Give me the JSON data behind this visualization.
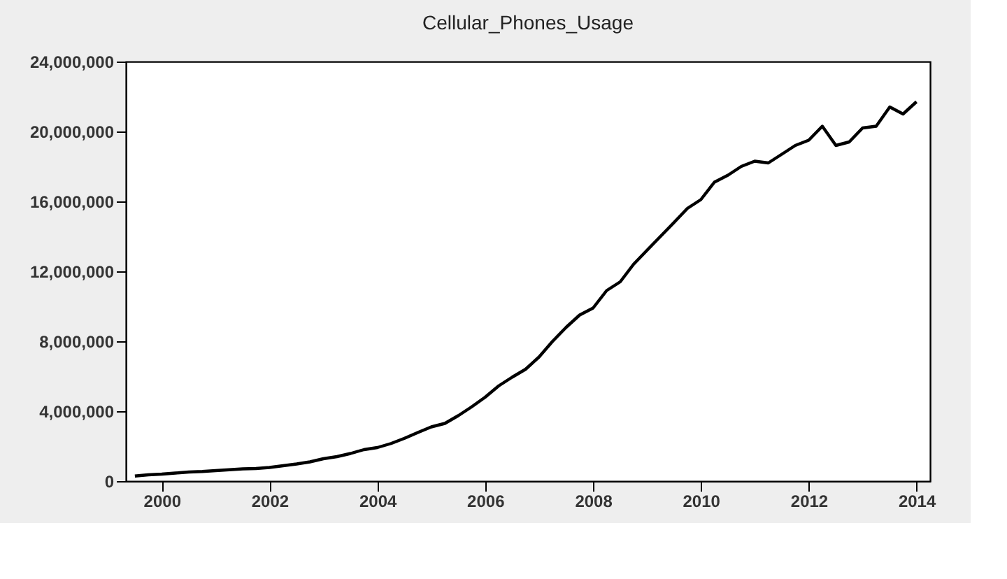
{
  "chart_data": {
    "type": "line",
    "title": "Cellular_Phones_Usage",
    "x": [
      "2000-01",
      "2000-04",
      "2000-07",
      "2000-10",
      "2001-01",
      "2001-04",
      "2001-07",
      "2001-10",
      "2002-01",
      "2002-04",
      "2002-07",
      "2002-10",
      "2003-01",
      "2003-04",
      "2003-07",
      "2003-10",
      "2004-01",
      "2004-04",
      "2004-07",
      "2004-10",
      "2005-01",
      "2005-04",
      "2005-07",
      "2005-10",
      "2006-01",
      "2006-04",
      "2006-07",
      "2006-10",
      "2007-01",
      "2007-04",
      "2007-07",
      "2007-10",
      "2008-01",
      "2008-04",
      "2008-07",
      "2008-10",
      "2009-01",
      "2009-04",
      "2009-07",
      "2009-10",
      "2010-01",
      "2010-04",
      "2010-07",
      "2010-10",
      "2011-01",
      "2011-04",
      "2011-07",
      "2011-10",
      "2012-01",
      "2012-04",
      "2012-07",
      "2012-10",
      "2013-01",
      "2013-04",
      "2013-07",
      "2013-10",
      "2014-01",
      "2014-04",
      "2014-07"
    ],
    "series": [
      {
        "color": "#000000",
        "values": [
          290000,
          360000,
          400000,
          460000,
          520000,
          550000,
          600000,
          650000,
          700000,
          720000,
          780000,
          880000,
          980000,
          1100000,
          1280000,
          1400000,
          1580000,
          1800000,
          1920000,
          2150000,
          2450000,
          2780000,
          3100000,
          3300000,
          3750000,
          4250000,
          4800000,
          5450000,
          5950000,
          6400000,
          7100000,
          8000000,
          8800000,
          9500000,
          9900000,
          10900000,
          11400000,
          12400000,
          13200000,
          14000000,
          14800000,
          15600000,
          16100000,
          17100000,
          17500000,
          18000000,
          18300000,
          18200000,
          18700000,
          19200000,
          19500000,
          20300000,
          19200000,
          19400000,
          20200000,
          20300000,
          21400000,
          21000000,
          21700000
        ]
      }
    ],
    "xlim": [
      "1999-11",
      "2014-10"
    ],
    "xticks": [
      {
        "value": "2000-07",
        "label": "2000"
      },
      {
        "value": "2002-07",
        "label": "2002"
      },
      {
        "value": "2004-07",
        "label": "2004"
      },
      {
        "value": "2006-07",
        "label": "2006"
      },
      {
        "value": "2008-07",
        "label": "2008"
      },
      {
        "value": "2010-07",
        "label": "2010"
      },
      {
        "value": "2012-07",
        "label": "2012"
      },
      {
        "value": "2014-07",
        "label": "2014"
      }
    ],
    "ylim": [
      0,
      24000000
    ],
    "yticks": [
      {
        "value": 0,
        "label": "0"
      },
      {
        "value": 4000000,
        "label": "4,000,000"
      },
      {
        "value": 8000000,
        "label": "8,000,000"
      },
      {
        "value": 12000000,
        "label": "12,000,000"
      },
      {
        "value": 16000000,
        "label": "16,000,000"
      },
      {
        "value": 20000000,
        "label": "20,000,000"
      },
      {
        "value": 24000000,
        "label": "24,000,000"
      }
    ],
    "grid": false,
    "marker": "none",
    "line_style": "solid"
  }
}
